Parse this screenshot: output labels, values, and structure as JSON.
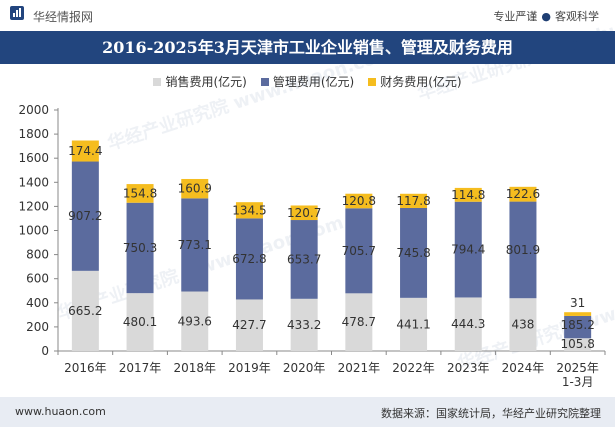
{
  "header": {
    "brand": "华经情报网",
    "slogan_left": "专业严谨",
    "slogan_sep": "●",
    "slogan_right": "客观科学"
  },
  "footer": {
    "url": "www.huaon.com",
    "source": "数据来源：国家统计局，华经产业研究院整理"
  },
  "watermark": "华经产业研究院 www.huaon.com",
  "colors": {
    "title_bg": "#22457e",
    "sales": "#d9d9d9",
    "management": "#5b6b9e",
    "finance": "#f5bd1f",
    "axis": "#888888"
  },
  "chart_data": {
    "type": "bar",
    "stacked": true,
    "title": "2016-2025年3月天津市工业企业销售、管理及财务费用",
    "xlabel": "",
    "ylabel": "",
    "ylim": [
      0,
      2000
    ],
    "yticks": [
      0,
      200,
      400,
      600,
      800,
      1000,
      1200,
      1400,
      1600,
      1800,
      2000
    ],
    "grid": false,
    "legend_position": "top",
    "categories": [
      [
        "2016年"
      ],
      [
        "2017年"
      ],
      [
        "2018年"
      ],
      [
        "2019年"
      ],
      [
        "2020年"
      ],
      [
        "2021年"
      ],
      [
        "2022年"
      ],
      [
        "2023年"
      ],
      [
        "2024年"
      ],
      [
        "2025年",
        "1-3月"
      ]
    ],
    "series": [
      {
        "name": "销售费用(亿元)",
        "color": "#d9d9d9",
        "values": [
          665.2,
          480.1,
          493.6,
          427.7,
          433.2,
          478.7,
          441.1,
          444.3,
          438,
          105.8
        ]
      },
      {
        "name": "管理费用(亿元)",
        "color": "#5b6b9e",
        "values": [
          907.2,
          750.3,
          773.1,
          672.8,
          653.7,
          705.7,
          745.8,
          794.4,
          801.9,
          185.2
        ]
      },
      {
        "name": "财务费用(亿元)",
        "color": "#f5bd1f",
        "values": [
          174.4,
          154.8,
          160.9,
          134.5,
          120.7,
          120.8,
          117.8,
          114.8,
          122.6,
          31
        ]
      }
    ]
  }
}
